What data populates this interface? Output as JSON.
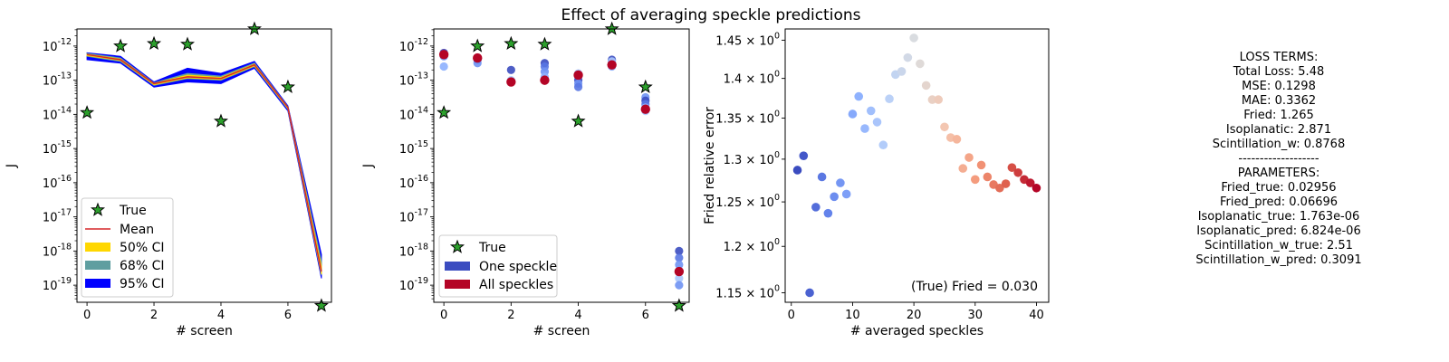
{
  "suptitle": "Effect of averaging speckle predictions",
  "chart_data": [
    {
      "type": "line",
      "xlabel": "# screen",
      "ylabel": "J",
      "xlim": [
        -0.3,
        7.3
      ],
      "ylim_log10": [
        -19.5,
        -11.5
      ],
      "y_scale": "log",
      "x_ticks": [
        0,
        2,
        4,
        6
      ],
      "y_ticks_exp": [
        -19,
        -18,
        -17,
        -16,
        -15,
        -14,
        -13,
        -12
      ],
      "legend": {
        "placement": "lower-left",
        "entries": [
          "True",
          "Mean",
          "50% CI",
          "68% CI",
          "95% CI"
        ]
      },
      "true_values": {
        "x": [
          0,
          1,
          2,
          3,
          4,
          5,
          6,
          7
        ],
        "log10_y": [
          -13.95,
          -12.0,
          -11.93,
          -11.95,
          -14.2,
          -11.5,
          -13.2,
          -19.6
        ]
      },
      "mean": {
        "x": [
          0,
          1,
          2,
          3,
          4,
          5,
          6,
          7
        ],
        "log10_y": [
          -12.25,
          -12.4,
          -13.1,
          -12.9,
          -12.95,
          -12.55,
          -13.8,
          -18.6
        ]
      },
      "ci95": {
        "lower": [
          -12.4,
          -12.5,
          -13.2,
          -13.05,
          -13.1,
          -12.65,
          -13.9,
          -18.8
        ],
        "upper": [
          -12.2,
          -12.3,
          -13.05,
          -12.65,
          -12.8,
          -12.45,
          -13.75,
          -18.1
        ]
      },
      "ci68": {
        "lower": [
          -12.3,
          -12.45,
          -13.15,
          -12.95,
          -13.0,
          -12.6,
          -13.85,
          -18.7
        ],
        "upper": [
          -12.22,
          -12.35,
          -13.08,
          -12.8,
          -12.88,
          -12.5,
          -13.78,
          -18.3
        ]
      },
      "ci50": {
        "lower": [
          -12.28,
          -12.42,
          -13.13,
          -12.93,
          -12.98,
          -12.58,
          -13.83,
          -18.68
        ],
        "upper": [
          -12.24,
          -12.38,
          -13.1,
          -12.85,
          -12.92,
          -12.53,
          -13.8,
          -18.45
        ]
      },
      "colors": {
        "true": "#2ca02c",
        "mean": "#d62728",
        "ci50": "#ffd700",
        "ci68": "#5f9ea0",
        "ci95": "#0000ff"
      }
    },
    {
      "type": "scatter",
      "xlabel": "# screen",
      "ylabel": "J",
      "xlim": [
        -0.3,
        7.3
      ],
      "ylim_log10": [
        -19.5,
        -11.5
      ],
      "y_scale": "log",
      "x_ticks": [
        0,
        2,
        4,
        6
      ],
      "y_ticks_exp": [
        -19,
        -18,
        -17,
        -16,
        -15,
        -14,
        -13,
        -12
      ],
      "legend": {
        "placement": "lower-left",
        "entries": [
          "True",
          "One speckle",
          "All speckles"
        ]
      },
      "true_values": {
        "x": [
          0,
          1,
          2,
          3,
          4,
          5,
          6,
          7
        ],
        "log10_y": [
          -13.95,
          -12.0,
          -11.93,
          -11.95,
          -14.2,
          -11.5,
          -13.2,
          -19.6
        ]
      },
      "one_speckle": {
        "x": [
          0,
          0,
          0,
          1,
          1,
          1,
          2,
          2,
          2,
          3,
          3,
          3,
          3,
          3,
          4,
          4,
          4,
          4,
          4,
          5,
          5,
          5,
          5,
          6,
          6,
          6,
          6,
          6,
          7,
          7,
          7,
          7,
          7,
          7
        ],
        "log10_y": [
          -12.2,
          -12.3,
          -12.6,
          -12.35,
          -12.4,
          -12.5,
          -12.7,
          -13.0,
          -13.05,
          -12.5,
          -12.6,
          -12.75,
          -12.9,
          -13.0,
          -12.8,
          -12.9,
          -13.0,
          -13.1,
          -13.2,
          -12.4,
          -12.5,
          -12.6,
          -12.45,
          -13.5,
          -13.6,
          -13.7,
          -13.8,
          -13.9,
          -18.0,
          -18.2,
          -18.4,
          -18.6,
          -18.8,
          -19.0
        ],
        "colors": [
          "#3b4cc0",
          "#6f92f3",
          "#8db0fe",
          "#aac7fd",
          "#3b4cc0",
          "#6f92f3",
          "#3b4cc0",
          "#aac7fd",
          "#8db0fe",
          "#3b4cc0",
          "#5977e3",
          "#6f92f3",
          "#8db0fe",
          "#aac7fd",
          "#aac7fd",
          "#8db0fe",
          "#3b4cc0",
          "#6f92f3",
          "#5977e3",
          "#3b4cc0",
          "#5977e3",
          "#8db0fe",
          "#aac7fd",
          "#6f92f3",
          "#3b4cc0",
          "#5977e3",
          "#8db0fe",
          "#aac7fd",
          "#3b4cc0",
          "#5977e3",
          "#6f92f3",
          "#8db0fe",
          "#aac7fd",
          "#6f92f3"
        ]
      },
      "all_speckles": {
        "x": [
          0,
          1,
          2,
          3,
          4,
          5,
          6,
          7
        ],
        "log10_y": [
          -12.25,
          -12.35,
          -13.05,
          -13.0,
          -12.85,
          -12.55,
          -13.85,
          -18.6
        ]
      },
      "colors": {
        "true": "#2ca02c",
        "one_speckle": "#3b4cc0",
        "all_speckles": "#b40426"
      }
    },
    {
      "type": "scatter",
      "xlabel": "# averaged speckles",
      "ylabel": "Fried relative error",
      "xlim": [
        -1,
        42
      ],
      "y_scale": "log",
      "ylim": [
        1.14,
        1.465
      ],
      "x_ticks": [
        0,
        10,
        20,
        30,
        40
      ],
      "y_ticks": [
        {
          "value": 1.15,
          "mantissa": "1.15"
        },
        {
          "value": 1.2,
          "mantissa": "1.2"
        },
        {
          "value": 1.25,
          "mantissa": "1.25"
        },
        {
          "value": 1.3,
          "mantissa": "1.3"
        },
        {
          "value": 1.35,
          "mantissa": "1.35"
        },
        {
          "value": 1.4,
          "mantissa": "1.4"
        },
        {
          "value": 1.45,
          "mantissa": "1.45"
        }
      ],
      "annotation": "(True) Fried = 0.030",
      "colormap": "coolwarm",
      "x": [
        1,
        2,
        3,
        4,
        5,
        6,
        7,
        8,
        9,
        10,
        11,
        12,
        13,
        14,
        15,
        16,
        17,
        18,
        19,
        20,
        21,
        22,
        23,
        24,
        25,
        26,
        27,
        28,
        29,
        30,
        31,
        32,
        33,
        34,
        35,
        36,
        37,
        38,
        39,
        40
      ],
      "y": [
        1.287,
        1.304,
        1.15,
        1.244,
        1.279,
        1.237,
        1.256,
        1.272,
        1.259,
        1.355,
        1.377,
        1.337,
        1.359,
        1.345,
        1.317,
        1.374,
        1.405,
        1.409,
        1.427,
        1.453,
        1.419,
        1.391,
        1.373,
        1.373,
        1.339,
        1.326,
        1.324,
        1.289,
        1.302,
        1.276,
        1.293,
        1.279,
        1.27,
        1.266,
        1.271,
        1.29,
        1.284,
        1.276,
        1.272,
        1.266
      ]
    }
  ],
  "info_panel": {
    "lines": [
      "LOSS TERMS:",
      "Total Loss: 5.48",
      "MSE: 0.1298",
      "MAE: 0.3362",
      "Fried: 1.265",
      "Isoplanatic: 2.871",
      "Scintillation_w: 0.8768",
      "-------------------",
      "PARAMETERS:",
      "Fried_true: 0.02956",
      "Fried_pred: 0.06696",
      "Isoplanatic_true: 1.763e-06",
      "Isoplanatic_pred: 6.824e-06",
      "Scintillation_w_true: 2.51",
      "Scintillation_w_pred: 0.3091"
    ]
  }
}
